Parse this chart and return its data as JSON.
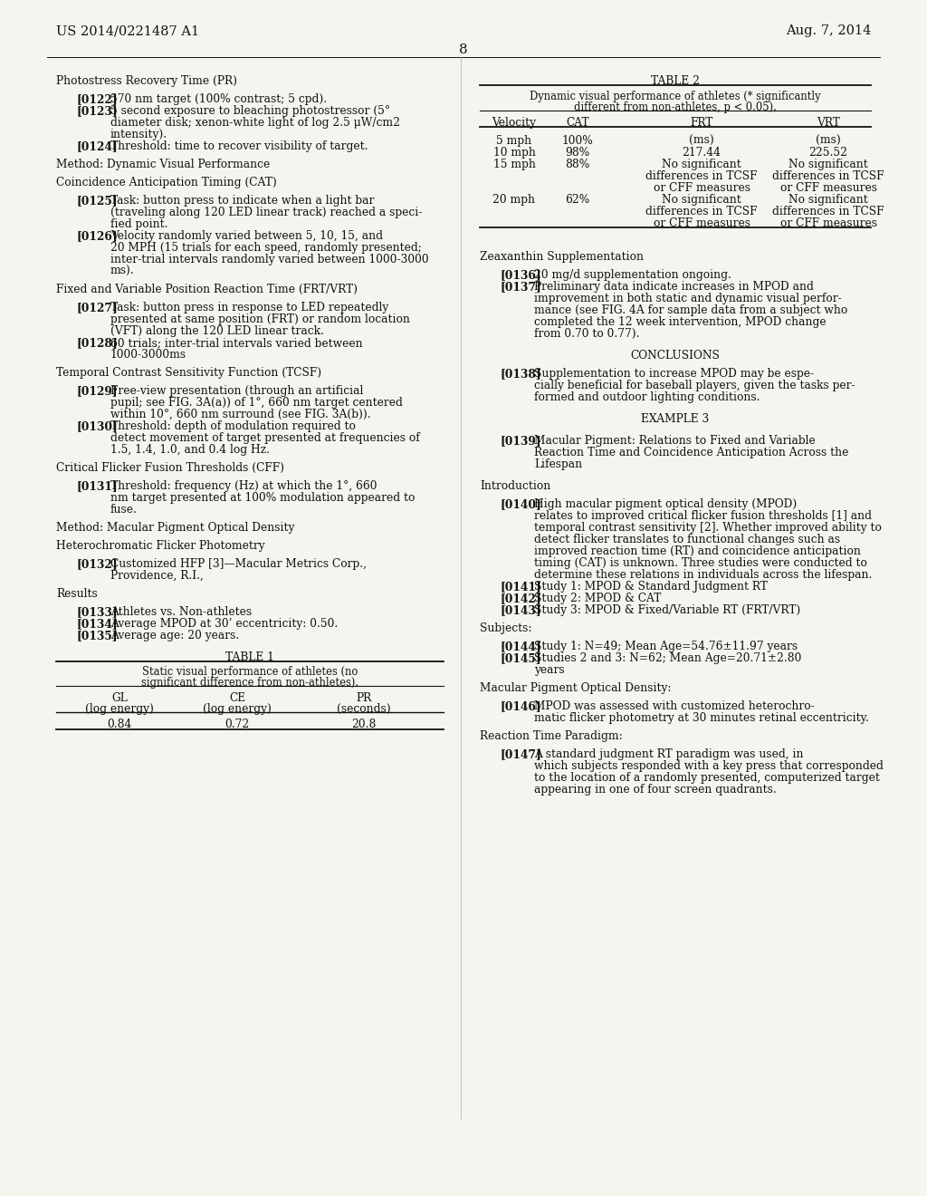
{
  "bg_color": "#f5f5f0",
  "header_left": "US 2014/0221487 A1",
  "header_right": "Aug. 7, 2014",
  "page_number": "8"
}
